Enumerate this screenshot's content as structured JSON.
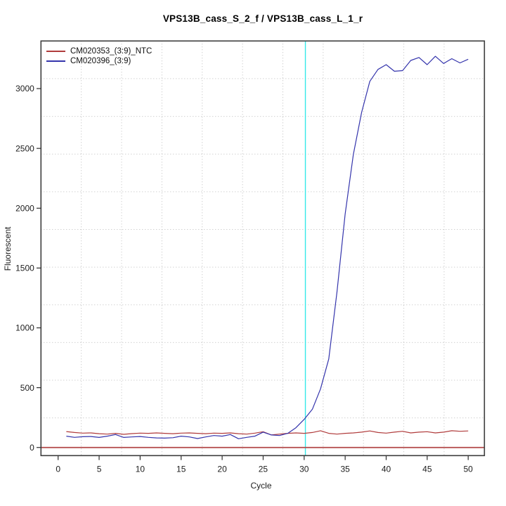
{
  "figure": {
    "background": "#ffffff",
    "box_color": "#3c3c3c",
    "tick_color": "#2e2e2e"
  },
  "chart_data": {
    "type": "line",
    "title": "VPS13B_cass_S_2_f / VPS13B_cass_L_1_r",
    "xlabel": "Cycle",
    "ylabel": "Fluorescent",
    "x_ticks": [
      0,
      5,
      10,
      15,
      20,
      25,
      30,
      35,
      40,
      45,
      50
    ],
    "y_ticks": [
      0,
      500,
      1000,
      1500,
      2000,
      2500,
      3000
    ],
    "xlim": [
      -2.09,
      51.98
    ],
    "ylim": [
      -68,
      3398
    ],
    "grid": {
      "divisions": 11,
      "color": "#bdbdbd",
      "style": "dotted"
    },
    "legend_position": "top-left",
    "x": [
      1,
      2,
      3,
      4,
      5,
      6,
      7,
      8,
      9,
      10,
      11,
      12,
      13,
      14,
      15,
      16,
      17,
      18,
      19,
      20,
      21,
      22,
      23,
      24,
      25,
      26,
      27,
      28,
      29,
      30,
      31,
      32,
      33,
      34,
      35,
      36,
      37,
      38,
      39,
      40,
      41,
      42,
      43,
      44,
      45,
      46,
      47,
      48,
      49,
      50
    ],
    "series": [
      {
        "name": "CM020353_(3:9)_NTC",
        "color": "#b03b3b",
        "values": [
          133,
          125,
          120,
          122,
          115,
          112,
          118,
          110,
          116,
          120,
          118,
          122,
          118,
          115,
          120,
          122,
          118,
          115,
          120,
          118,
          122,
          115,
          112,
          120,
          132,
          105,
          112,
          118,
          122,
          118,
          125,
          140,
          118,
          112,
          118,
          122,
          128,
          138,
          125,
          120,
          128,
          135,
          122,
          128,
          132,
          122,
          128,
          140,
          135,
          138
        ]
      },
      {
        "name": "CM020396_(3:9)",
        "color": "#3434ac",
        "values": [
          95,
          85,
          90,
          92,
          84,
          95,
          108,
          84,
          88,
          92,
          85,
          80,
          78,
          82,
          95,
          88,
          75,
          88,
          100,
          95,
          108,
          73,
          85,
          95,
          128,
          105,
          100,
          118,
          165,
          235,
          320,
          490,
          740,
          1300,
          1950,
          2450,
          2800,
          3060,
          3160,
          3200,
          3145,
          3150,
          3235,
          3260,
          3200,
          3270,
          3210,
          3250,
          3215,
          3245
        ]
      }
    ],
    "ct_marker": {
      "cycle": 30.15,
      "color": "#36e8e8"
    },
    "zero_line": {
      "value": 0,
      "color": "#b24848"
    }
  }
}
